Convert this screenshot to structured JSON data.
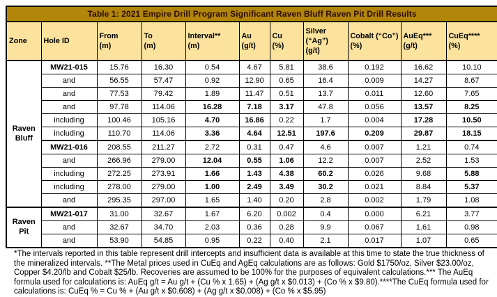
{
  "title": "Table 1: 2021 Empire Drill Program Significant Raven Bluff Raven Pit Drill Results",
  "colors": {
    "title_bg": "#B1860B",
    "title_text": "#2e0c03",
    "header_bg": "#FBE39E",
    "border": "#000000"
  },
  "columns": [
    {
      "key": "zone",
      "lines": [
        "Zone"
      ]
    },
    {
      "key": "hole-id",
      "lines": [
        "Hole ID"
      ]
    },
    {
      "key": "from-m",
      "lines": [
        "From",
        "(m)"
      ]
    },
    {
      "key": "to-m",
      "lines": [
        "To",
        "(m)"
      ]
    },
    {
      "key": "interval-m",
      "lines": [
        "Interval**",
        "(m)"
      ]
    },
    {
      "key": "au-gt",
      "lines": [
        "Au",
        "(g/t)"
      ]
    },
    {
      "key": "cu-pct",
      "lines": [
        "Cu",
        "(%)"
      ]
    },
    {
      "key": "silver-gt",
      "lines": [
        "Silver",
        "(“Ag”)",
        "(g/t)"
      ]
    },
    {
      "key": "cobalt-pct",
      "lines": [
        "Cobalt (“Co”)",
        "(%)"
      ]
    },
    {
      "key": "aueq-gt",
      "lines": [
        "AuEq***",
        "(g/t)"
      ]
    },
    {
      "key": "cueq-pct",
      "lines": [
        "CuEq****",
        "(%)"
      ]
    }
  ],
  "zones": [
    {
      "label": "Raven Bluff",
      "rows": 11
    },
    {
      "label": "Raven Pit",
      "rows": 3
    }
  ],
  "rows": [
    {
      "hole": "MW21-015",
      "hole_bold": true,
      "group_start": true,
      "values": [
        "15.76",
        "16.30",
        "0.54",
        "4.67",
        "5.81",
        "38.6",
        "0.192",
        "16.62",
        "10.10"
      ],
      "bold": [
        0,
        0,
        0,
        0,
        0,
        0,
        0,
        0,
        0
      ]
    },
    {
      "hole": "and",
      "hole_bold": false,
      "group_start": false,
      "values": [
        "56.55",
        "57.47",
        "0.92",
        "12.90",
        "0.65",
        "16.4",
        "0.009",
        "14.27",
        "8.67"
      ],
      "bold": [
        0,
        0,
        0,
        0,
        0,
        0,
        0,
        0,
        0
      ]
    },
    {
      "hole": "and",
      "hole_bold": false,
      "group_start": false,
      "values": [
        "77.53",
        "79.42",
        "1.89",
        "11.47",
        "0.51",
        "13.7",
        "0.011",
        "12.60",
        "7.65"
      ],
      "bold": [
        0,
        0,
        0,
        0,
        0,
        0,
        0,
        0,
        0
      ]
    },
    {
      "hole": "and",
      "hole_bold": false,
      "group_start": false,
      "values": [
        "97.78",
        "114.06",
        "16.28",
        "7.18",
        "3.17",
        "47.8",
        "0.056",
        "13.57",
        "8.25"
      ],
      "bold": [
        0,
        0,
        1,
        1,
        1,
        0,
        0,
        1,
        1
      ]
    },
    {
      "hole": "including",
      "hole_bold": false,
      "group_start": false,
      "values": [
        "100.46",
        "105.16",
        "4.70",
        "16.86",
        "0.22",
        "1.7",
        "0.004",
        "17.28",
        "10.50"
      ],
      "bold": [
        0,
        0,
        1,
        1,
        0,
        0,
        0,
        1,
        1
      ]
    },
    {
      "hole": "including",
      "hole_bold": false,
      "group_start": false,
      "values": [
        "110.70",
        "114.06",
        "3.36",
        "4.64",
        "12.51",
        "197.6",
        "0.209",
        "29.87",
        "18.15"
      ],
      "bold": [
        0,
        0,
        1,
        1,
        1,
        1,
        1,
        1,
        1
      ]
    },
    {
      "hole": "MW21-016",
      "hole_bold": true,
      "group_start": true,
      "values": [
        "208.55",
        "211.27",
        "2.72",
        "0.31",
        "0.47",
        "4.6",
        "0.007",
        "1.21",
        "0.74"
      ],
      "bold": [
        0,
        0,
        0,
        0,
        0,
        0,
        0,
        0,
        0
      ]
    },
    {
      "hole": "and",
      "hole_bold": false,
      "group_start": false,
      "values": [
        "266.96",
        "279.00",
        "12.04",
        "0.55",
        "1.06",
        "12.2",
        "0.007",
        "2.52",
        "1.53"
      ],
      "bold": [
        0,
        0,
        1,
        1,
        1,
        0,
        0,
        0,
        0
      ]
    },
    {
      "hole": "including",
      "hole_bold": false,
      "group_start": false,
      "values": [
        "272.25",
        "273.91",
        "1.66",
        "1.43",
        "4.38",
        "60.2",
        "0.026",
        "9.68",
        "5.88"
      ],
      "bold": [
        0,
        0,
        1,
        1,
        1,
        1,
        0,
        0,
        1
      ]
    },
    {
      "hole": "including",
      "hole_bold": false,
      "group_start": false,
      "values": [
        "278.00",
        "279.00",
        "1.00",
        "2.49",
        "3.49",
        "30.2",
        "0.021",
        "8.84",
        "5.37"
      ],
      "bold": [
        0,
        0,
        1,
        1,
        1,
        1,
        0,
        0,
        1
      ]
    },
    {
      "hole": "and",
      "hole_bold": false,
      "group_start": false,
      "values": [
        "295.35",
        "297.00",
        "1.65",
        "1.40",
        "0.20",
        "2.8",
        "0.002",
        "1.79",
        "1.08"
      ],
      "bold": [
        0,
        0,
        0,
        0,
        0,
        0,
        0,
        0,
        0
      ]
    },
    {
      "hole": "MW21-017",
      "hole_bold": true,
      "group_start": true,
      "values": [
        "31.00",
        "32.67",
        "1.67",
        "6.20",
        "0.002",
        "0.4",
        "0.000",
        "6.21",
        "3.77"
      ],
      "bold": [
        0,
        0,
        0,
        0,
        0,
        0,
        0,
        0,
        0
      ]
    },
    {
      "hole": "and",
      "hole_bold": false,
      "group_start": false,
      "values": [
        "32.67",
        "34.70",
        "2.03",
        "0.36",
        "0.28",
        "9.9",
        "0.067",
        "1.61",
        "0.98"
      ],
      "bold": [
        0,
        0,
        0,
        0,
        0,
        0,
        0,
        0,
        0
      ]
    },
    {
      "hole": "and",
      "hole_bold": false,
      "group_start": false,
      "values": [
        "53.90",
        "54.85",
        "0.95",
        "0.22",
        "0.40",
        "2.1",
        "0.017",
        "1.07",
        "0.65"
      ],
      "bold": [
        0,
        0,
        0,
        0,
        0,
        0,
        0,
        0,
        0
      ]
    }
  ],
  "footnote": "*The intervals reported in this table represent drill intercepts and insufficient data is available at this time to state the true thickness of the mineralized intervals. **The Metal prices used in CuEq and AgEq calculations are as follows: Gold $1750/oz, Silver $23.00/oz, Copper $4.20/lb and Cobalt $25/lb. Recoveries are assumed to be 100% for the purposes of equivalent calculations.*** The AuEq formula used for calculations is: AuEq g/t = Au g/t + (Cu % x 1.65) + (Ag g/t x $0.013) + (Co % x $9.80).****The CuEq formula used for calculations is: CuEq % = Cu % + (Au g/t x $0.608) + (Ag g/t x $0.008) + (Co % x $5.95)"
}
